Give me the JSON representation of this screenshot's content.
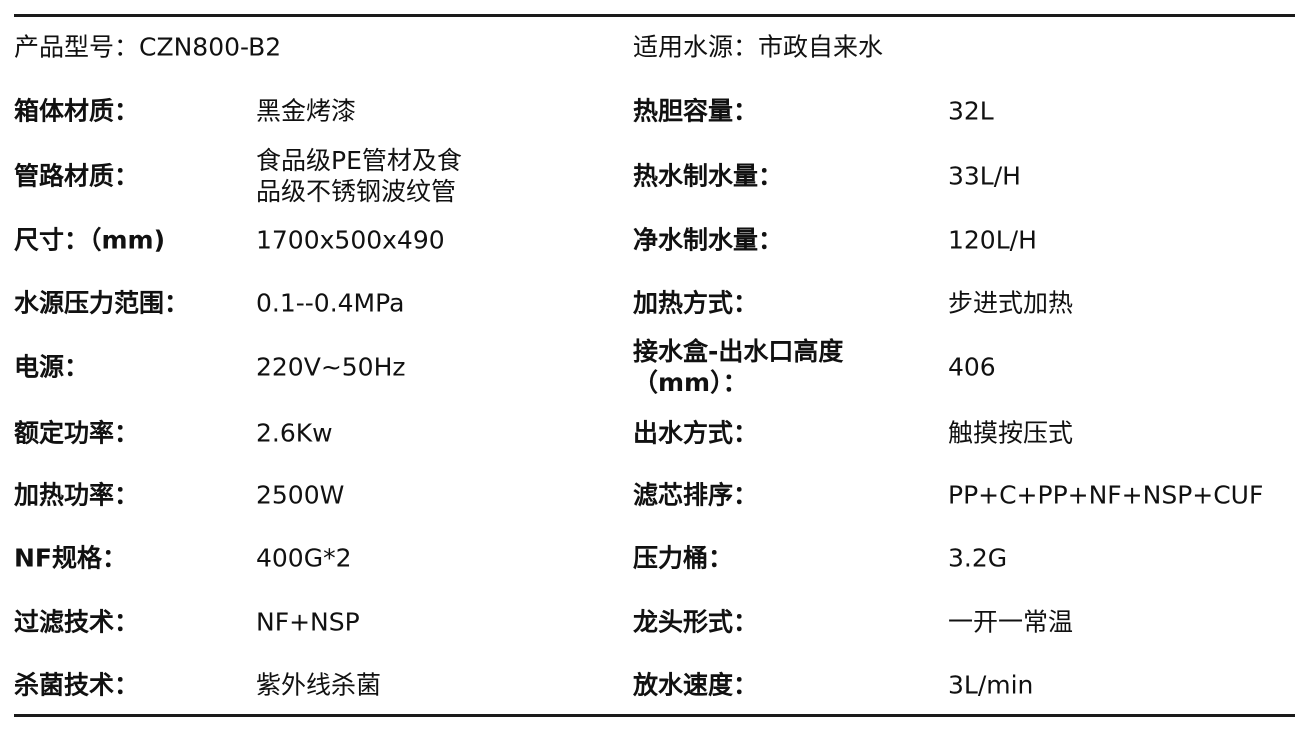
{
  "header": {
    "left": "产品型号：CZN800-B2",
    "right": "适用水源：市政自来水"
  },
  "rows": [
    {
      "label1": "箱体材质：",
      "value1": "黑金烤漆",
      "label2": "热胆容量：",
      "value2": "32L"
    },
    {
      "label1": "管路材质：",
      "value1": "食品级PE管材及食\n品级不锈钢波纹管",
      "label2": "热水制水量：",
      "value2": "33L/H"
    },
    {
      "label1": "尺寸：（mm)",
      "value1": "1700x500x490",
      "label2": "净水制水量：",
      "value2": "120L/H"
    },
    {
      "label1": "水源压力范围：",
      "value1": "0.1--0.4MPa",
      "label2": "加热方式：",
      "value2": "步进式加热"
    },
    {
      "label1": "电源：",
      "value1": "220V~50Hz",
      "label2": "接水盒-出水口高度\n（mm）：",
      "value2": "406"
    },
    {
      "label1": "额定功率：",
      "value1": "2.6Kw",
      "label2": "出水方式：",
      "value2": "触摸按压式"
    },
    {
      "label1": "加热功率：",
      "value1": "2500W",
      "label2": "滤芯排序：",
      "value2": "PP+C+PP+NF+NSP+CUF"
    },
    {
      "label1": "NF规格：",
      "value1": "400G*2",
      "label2": "压力桶：",
      "value2": "3.2G"
    },
    {
      "label1": "过滤技术：",
      "value1": "NF+NSP",
      "label2": "龙头形式：",
      "value2": "一开一常温"
    },
    {
      "label1": "杀菌技术：",
      "value1": "紫外线杀菌",
      "label2": "放水速度：",
      "value2": "3L/min"
    }
  ]
}
